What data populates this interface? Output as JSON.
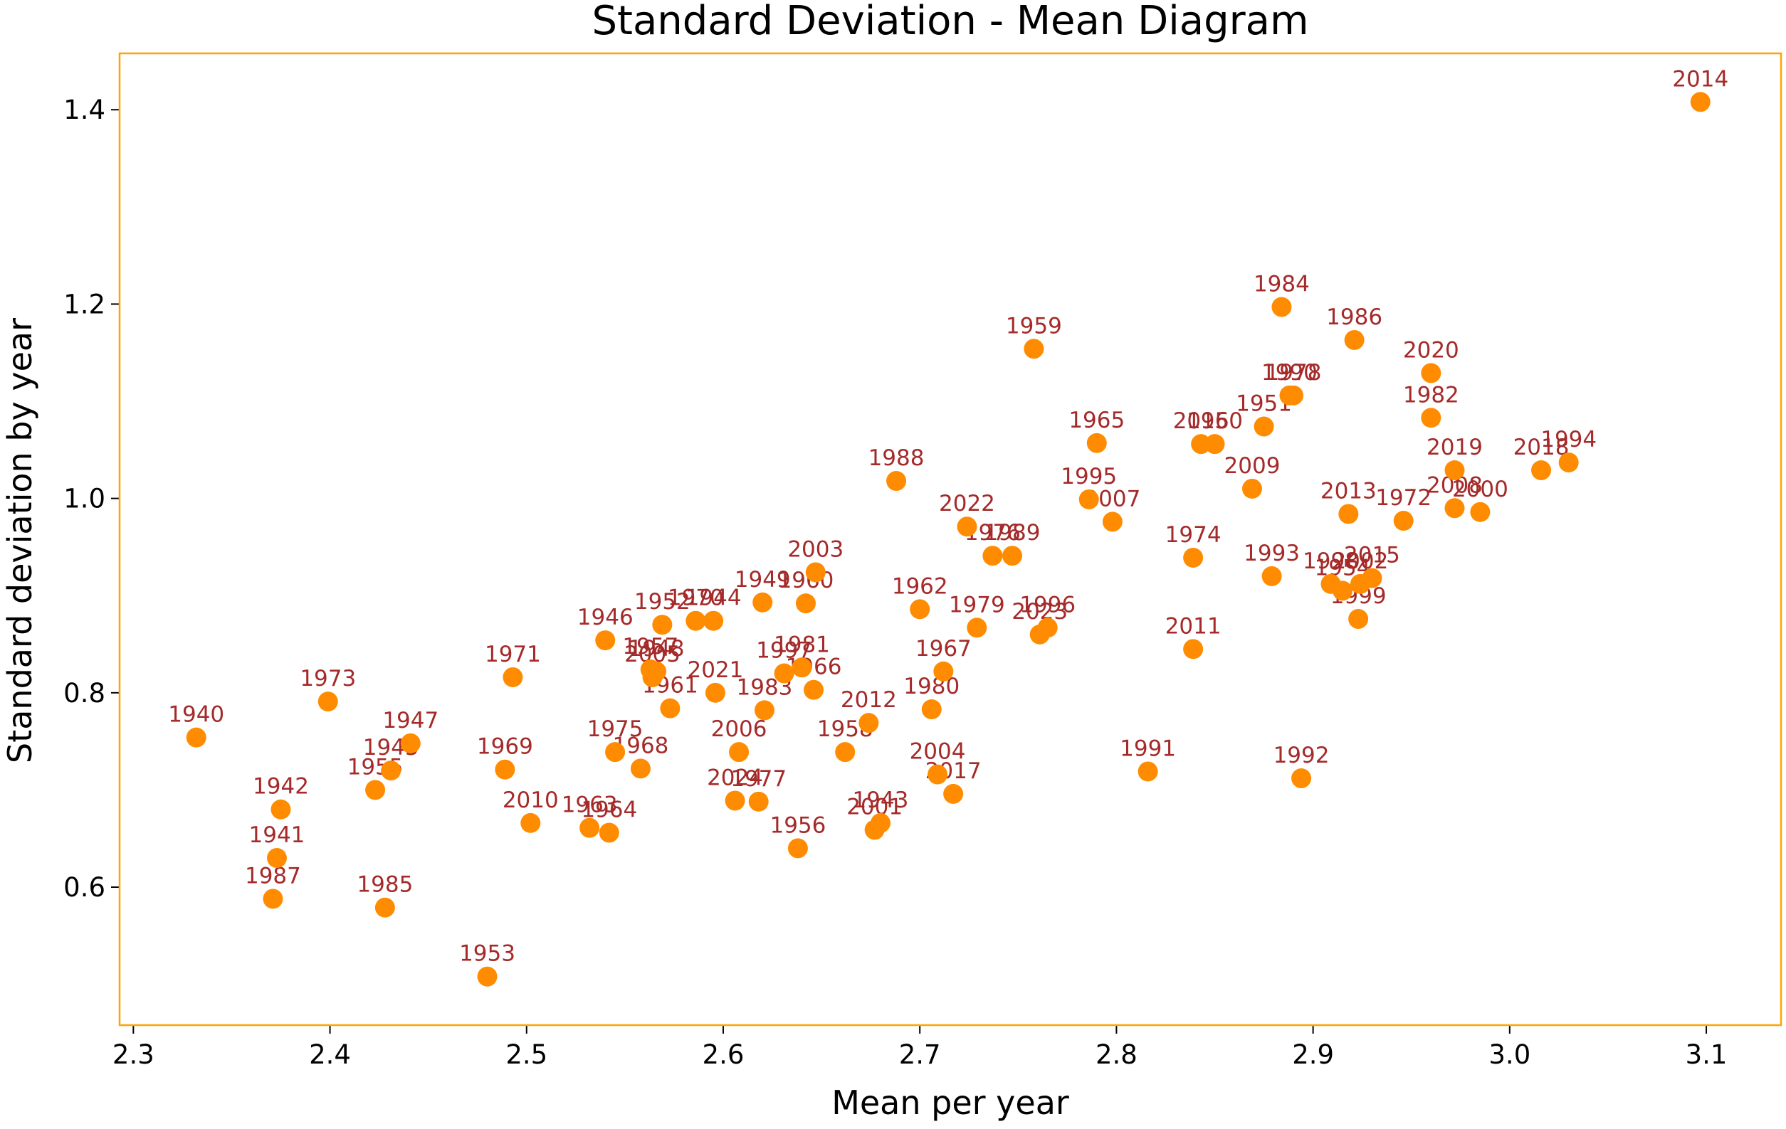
{
  "chart_data": {
    "type": "scatter",
    "title": "Standard Deviation - Mean Diagram",
    "xlabel": "Mean per year",
    "ylabel": "Standard deviation by year",
    "xlim": [
      2.293,
      3.138
    ],
    "ylim": [
      0.458,
      1.458
    ],
    "x_ticks": [
      "2.3",
      "2.4",
      "2.5",
      "2.6",
      "2.7",
      "2.8",
      "2.9",
      "3.0",
      "3.1"
    ],
    "y_ticks": [
      "0.6",
      "0.8",
      "1.0",
      "1.2",
      "1.4"
    ],
    "grid": false,
    "legend": "none",
    "colors": {
      "marker": "#ff8c00",
      "label": "#a52a2a",
      "frame": "#ffa500",
      "text": "#000000"
    },
    "points": [
      {
        "label": "1940",
        "x": 2.332,
        "y": 0.754
      },
      {
        "label": "1941",
        "x": 2.373,
        "y": 0.63
      },
      {
        "label": "1942",
        "x": 2.375,
        "y": 0.68
      },
      {
        "label": "1943",
        "x": 2.68,
        "y": 0.666
      },
      {
        "label": "1944",
        "x": 2.595,
        "y": 0.874
      },
      {
        "label": "1945",
        "x": 2.431,
        "y": 0.72
      },
      {
        "label": "1946",
        "x": 2.54,
        "y": 0.854
      },
      {
        "label": "1947",
        "x": 2.441,
        "y": 0.748
      },
      {
        "label": "1948",
        "x": 2.566,
        "y": 0.822
      },
      {
        "label": "1949",
        "x": 2.62,
        "y": 0.893
      },
      {
        "label": "1950",
        "x": 2.85,
        "y": 1.056
      },
      {
        "label": "1951",
        "x": 2.875,
        "y": 1.074
      },
      {
        "label": "1952",
        "x": 2.569,
        "y": 0.87
      },
      {
        "label": "1953",
        "x": 2.48,
        "y": 0.508
      },
      {
        "label": "1954",
        "x": 2.915,
        "y": 0.905
      },
      {
        "label": "1955",
        "x": 2.423,
        "y": 0.7
      },
      {
        "label": "1956",
        "x": 2.638,
        "y": 0.64
      },
      {
        "label": "1957",
        "x": 2.563,
        "y": 0.824
      },
      {
        "label": "1958",
        "x": 2.662,
        "y": 0.739
      },
      {
        "label": "1959",
        "x": 2.758,
        "y": 1.154
      },
      {
        "label": "1960",
        "x": 2.642,
        "y": 0.892
      },
      {
        "label": "1961",
        "x": 2.573,
        "y": 0.784
      },
      {
        "label": "1962",
        "x": 2.7,
        "y": 0.886
      },
      {
        "label": "1963",
        "x": 2.532,
        "y": 0.661
      },
      {
        "label": "1964",
        "x": 2.542,
        "y": 0.656
      },
      {
        "label": "1965",
        "x": 2.79,
        "y": 1.057
      },
      {
        "label": "1966",
        "x": 2.646,
        "y": 0.803
      },
      {
        "label": "1967",
        "x": 2.712,
        "y": 0.822
      },
      {
        "label": "1968",
        "x": 2.558,
        "y": 0.722
      },
      {
        "label": "1969",
        "x": 2.489,
        "y": 0.721
      },
      {
        "label": "1970",
        "x": 2.586,
        "y": 0.874
      },
      {
        "label": "1971",
        "x": 2.493,
        "y": 0.816
      },
      {
        "label": "1972",
        "x": 2.946,
        "y": 0.977
      },
      {
        "label": "1973",
        "x": 2.399,
        "y": 0.791
      },
      {
        "label": "1974",
        "x": 2.839,
        "y": 0.939
      },
      {
        "label": "1975",
        "x": 2.545,
        "y": 0.739
      },
      {
        "label": "1976",
        "x": 2.737,
        "y": 0.941
      },
      {
        "label": "1977",
        "x": 2.618,
        "y": 0.688
      },
      {
        "label": "1978",
        "x": 2.89,
        "y": 1.106
      },
      {
        "label": "1979",
        "x": 2.729,
        "y": 0.867
      },
      {
        "label": "1980",
        "x": 2.706,
        "y": 0.783
      },
      {
        "label": "1981",
        "x": 2.64,
        "y": 0.826
      },
      {
        "label": "1982",
        "x": 2.96,
        "y": 1.083
      },
      {
        "label": "1983",
        "x": 2.621,
        "y": 0.782
      },
      {
        "label": "1984",
        "x": 2.884,
        "y": 1.197
      },
      {
        "label": "1985",
        "x": 2.428,
        "y": 0.579
      },
      {
        "label": "1986",
        "x": 2.921,
        "y": 1.163
      },
      {
        "label": "1987",
        "x": 2.371,
        "y": 0.588
      },
      {
        "label": "1988",
        "x": 2.688,
        "y": 1.018
      },
      {
        "label": "1989",
        "x": 2.747,
        "y": 0.941
      },
      {
        "label": "1990",
        "x": 2.888,
        "y": 1.106
      },
      {
        "label": "1991",
        "x": 2.816,
        "y": 0.719
      },
      {
        "label": "1992",
        "x": 2.894,
        "y": 0.712
      },
      {
        "label": "1993",
        "x": 2.879,
        "y": 0.92
      },
      {
        "label": "1994",
        "x": 3.03,
        "y": 1.037
      },
      {
        "label": "1995",
        "x": 2.786,
        "y": 0.999
      },
      {
        "label": "1996",
        "x": 2.765,
        "y": 0.867
      },
      {
        "label": "1997",
        "x": 2.631,
        "y": 0.82
      },
      {
        "label": "1998",
        "x": 2.909,
        "y": 0.912
      },
      {
        "label": "1999",
        "x": 2.923,
        "y": 0.876
      },
      {
        "label": "2000",
        "x": 2.985,
        "y": 0.986
      },
      {
        "label": "2001",
        "x": 2.677,
        "y": 0.659
      },
      {
        "label": "2002",
        "x": 2.924,
        "y": 0.912
      },
      {
        "label": "2003",
        "x": 2.647,
        "y": 0.924
      },
      {
        "label": "2004",
        "x": 2.709,
        "y": 0.716
      },
      {
        "label": "2005",
        "x": 2.564,
        "y": 0.816
      },
      {
        "label": "2006",
        "x": 2.608,
        "y": 0.739
      },
      {
        "label": "2007",
        "x": 2.798,
        "y": 0.976
      },
      {
        "label": "2008",
        "x": 2.972,
        "y": 0.99
      },
      {
        "label": "2009",
        "x": 2.869,
        "y": 1.01
      },
      {
        "label": "2010",
        "x": 2.502,
        "y": 0.666
      },
      {
        "label": "2011",
        "x": 2.839,
        "y": 0.845
      },
      {
        "label": "2012",
        "x": 2.674,
        "y": 0.769
      },
      {
        "label": "2013",
        "x": 2.918,
        "y": 0.984
      },
      {
        "label": "2014",
        "x": 3.097,
        "y": 1.408
      },
      {
        "label": "2015",
        "x": 2.93,
        "y": 0.918
      },
      {
        "label": "2016",
        "x": 2.843,
        "y": 1.056
      },
      {
        "label": "2017",
        "x": 2.717,
        "y": 0.696
      },
      {
        "label": "2018",
        "x": 3.016,
        "y": 1.029
      },
      {
        "label": "2019",
        "x": 2.972,
        "y": 1.029
      },
      {
        "label": "2020",
        "x": 2.96,
        "y": 1.129
      },
      {
        "label": "2021",
        "x": 2.596,
        "y": 0.8
      },
      {
        "label": "2022",
        "x": 2.724,
        "y": 0.971
      },
      {
        "label": "2023",
        "x": 2.761,
        "y": 0.86
      },
      {
        "label": "2024",
        "x": 2.606,
        "y": 0.689
      }
    ]
  }
}
